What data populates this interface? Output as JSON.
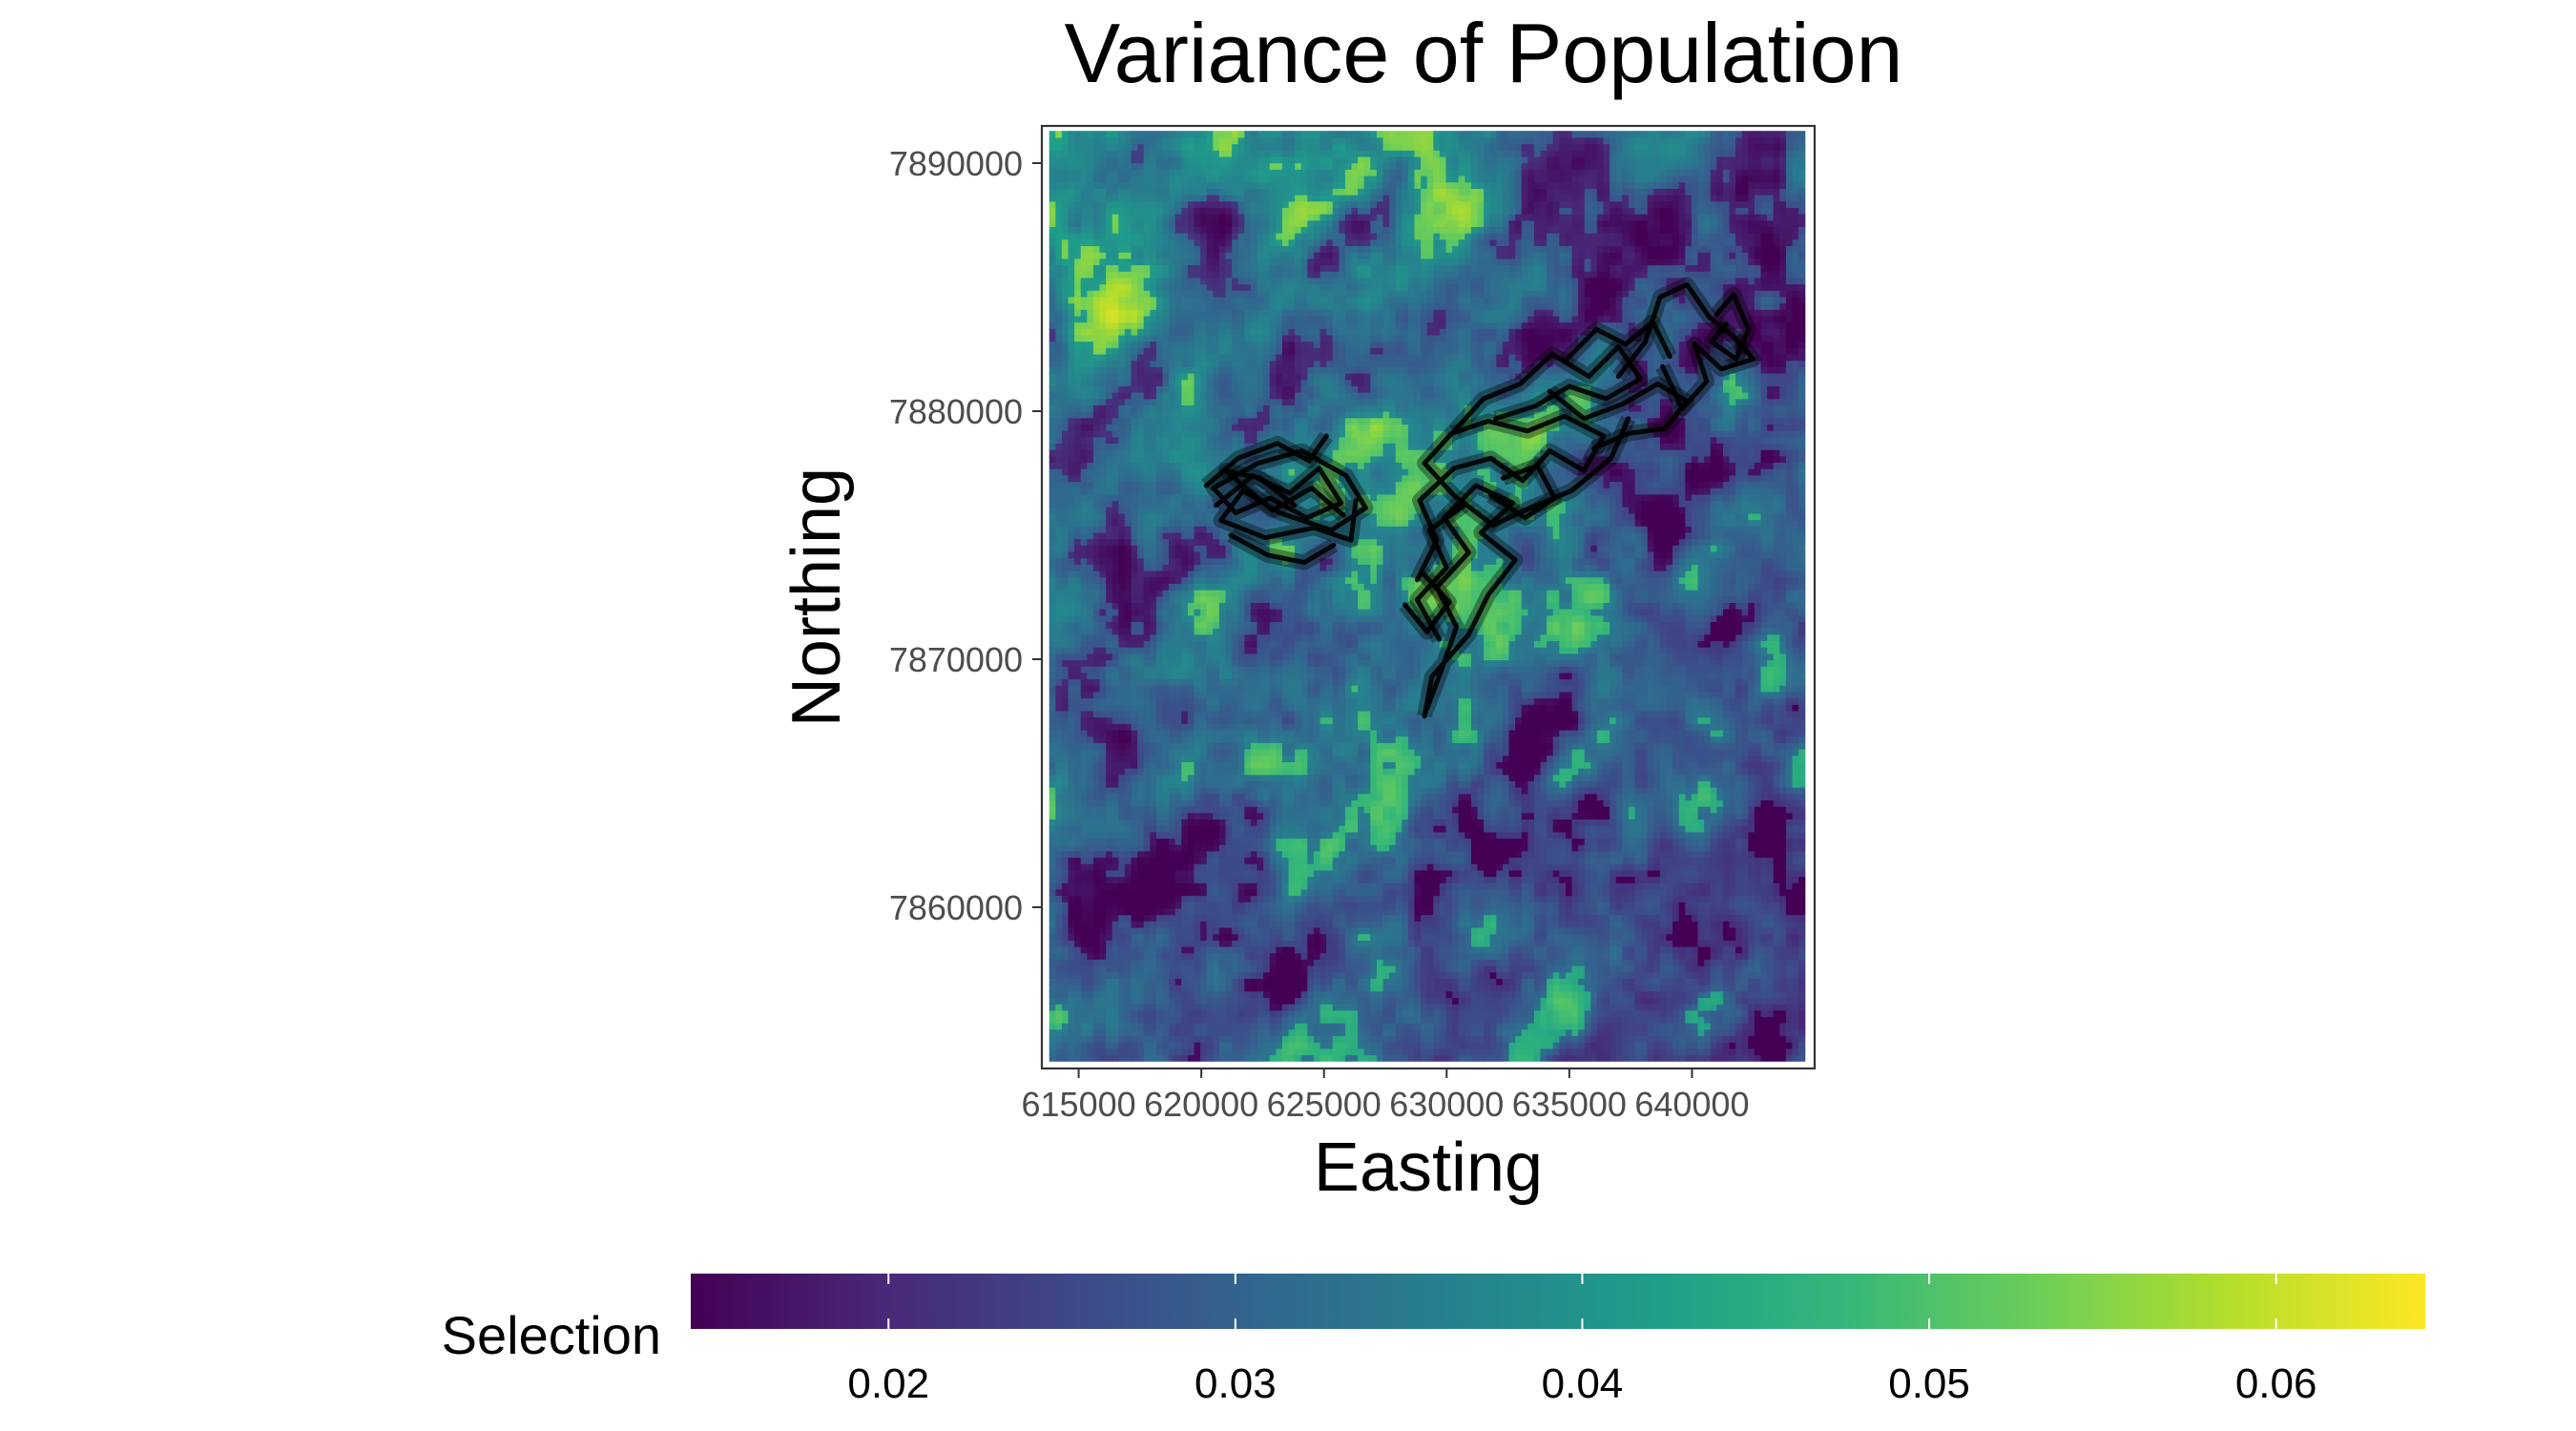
{
  "chart_data": {
    "type": "heatmap",
    "title": "Variance of Population",
    "xlabel": "Easting",
    "ylabel": "Northing",
    "x_ticks": [
      615000,
      620000,
      625000,
      630000,
      635000,
      640000
    ],
    "x_tick_labels": [
      "615000",
      "620000",
      "625000",
      "630000",
      "635000",
      "640000"
    ],
    "y_ticks": [
      7860000,
      7870000,
      7880000,
      7890000
    ],
    "y_tick_labels": [
      "7860000",
      "7870000",
      "7880000",
      "7890000"
    ],
    "xlim": [
      613500,
      645000
    ],
    "ylim": [
      7853500,
      7891500
    ],
    "raster_extent": {
      "x": [
        613800,
        644600
      ],
      "y": [
        7853800,
        7891300
      ]
    },
    "grid": false,
    "colormap": "viridis",
    "colors": {
      "viridis": [
        "#440154",
        "#482878",
        "#3e4989",
        "#31688e",
        "#26828e",
        "#1f9e89",
        "#35b779",
        "#6ece58",
        "#b5de2b",
        "#fde725"
      ]
    },
    "legend": {
      "title": "Selection",
      "position": "bottom",
      "range": [
        0.0143,
        0.0643
      ],
      "breaks": [
        0.02,
        0.03,
        0.04,
        0.05,
        0.06
      ],
      "break_labels": [
        "0.02",
        "0.03",
        "0.04",
        "0.05",
        "0.06"
      ]
    },
    "track_color": "#000000",
    "tracks": [
      [
        [
          620600,
          7876200
        ],
        [
          622100,
          7877400
        ],
        [
          623600,
          7876700
        ],
        [
          624800,
          7877700
        ],
        [
          625700,
          7876300
        ],
        [
          624300,
          7875700
        ],
        [
          622800,
          7876500
        ],
        [
          621400,
          7875900
        ],
        [
          620500,
          7876900
        ],
        [
          622300,
          7877900
        ],
        [
          624100,
          7878400
        ],
        [
          625900,
          7877400
        ],
        [
          626700,
          7876100
        ],
        [
          625300,
          7875200
        ],
        [
          623200,
          7875900
        ],
        [
          621700,
          7876800
        ],
        [
          620800,
          7875600
        ],
        [
          622600,
          7874900
        ],
        [
          624600,
          7875300
        ],
        [
          626100,
          7874800
        ],
        [
          626300,
          7876400
        ]
      ],
      [
        [
          620200,
          7877000
        ],
        [
          621500,
          7878100
        ],
        [
          623100,
          7878700
        ],
        [
          624400,
          7878000
        ],
        [
          625100,
          7879000
        ]
      ],
      [
        [
          621200,
          7875000
        ],
        [
          622700,
          7874200
        ],
        [
          624200,
          7873900
        ],
        [
          625400,
          7874600
        ]
      ],
      [
        [
          623800,
          7876200
        ],
        [
          622400,
          7877300
        ],
        [
          621000,
          7877600
        ],
        [
          622900,
          7876000
        ],
        [
          624500,
          7876900
        ],
        [
          625800,
          7875800
        ]
      ],
      [
        [
          629200,
          7868000
        ],
        [
          629800,
          7869600
        ],
        [
          630400,
          7871300
        ],
        [
          629600,
          7872900
        ],
        [
          630900,
          7874300
        ],
        [
          629900,
          7875700
        ],
        [
          631200,
          7877000
        ],
        [
          632700,
          7876300
        ],
        [
          631400,
          7875100
        ],
        [
          632800,
          7874000
        ],
        [
          631700,
          7872600
        ],
        [
          630900,
          7871000
        ],
        [
          629400,
          7869300
        ],
        [
          629100,
          7867700
        ]
      ],
      [
        [
          628800,
          7873200
        ],
        [
          629600,
          7874800
        ],
        [
          628900,
          7876400
        ],
        [
          630300,
          7877700
        ],
        [
          631800,
          7878100
        ],
        [
          633100,
          7877200
        ],
        [
          634200,
          7878400
        ],
        [
          635600,
          7877600
        ],
        [
          636400,
          7879000
        ],
        [
          634800,
          7879800
        ],
        [
          633300,
          7879200
        ],
        [
          631700,
          7879600
        ],
        [
          630200,
          7879100
        ],
        [
          629100,
          7877900
        ],
        [
          630300,
          7876600
        ],
        [
          631900,
          7875400
        ],
        [
          633400,
          7876100
        ],
        [
          635100,
          7876800
        ],
        [
          636700,
          7878100
        ],
        [
          637400,
          7879700
        ]
      ],
      [
        [
          630300,
          7879200
        ],
        [
          631500,
          7880500
        ],
        [
          633000,
          7881100
        ],
        [
          634300,
          7882300
        ],
        [
          635800,
          7881400
        ],
        [
          637000,
          7882600
        ],
        [
          637900,
          7881300
        ],
        [
          636500,
          7880500
        ],
        [
          635000,
          7881000
        ],
        [
          633600,
          7880200
        ],
        [
          632000,
          7879700
        ]
      ],
      [
        [
          634200,
          7880800
        ],
        [
          635600,
          7879700
        ],
        [
          637200,
          7880300
        ],
        [
          638600,
          7881100
        ],
        [
          639800,
          7880400
        ],
        [
          638900,
          7879300
        ],
        [
          637400,
          7879100
        ],
        [
          636000,
          7878500
        ]
      ],
      [
        [
          637000,
          7881400
        ],
        [
          638100,
          7882800
        ],
        [
          638700,
          7884600
        ],
        [
          639800,
          7885100
        ],
        [
          640700,
          7883800
        ],
        [
          641700,
          7883000
        ],
        [
          642500,
          7882100
        ],
        [
          641200,
          7881700
        ],
        [
          640100,
          7882700
        ],
        [
          640600,
          7881200
        ],
        [
          639600,
          7880100
        ],
        [
          638800,
          7881800
        ]
      ],
      [
        [
          641000,
          7883900
        ],
        [
          641700,
          7884700
        ],
        [
          642300,
          7883300
        ],
        [
          641800,
          7882100
        ],
        [
          640800,
          7882800
        ],
        [
          641400,
          7883500
        ]
      ],
      [
        [
          634800,
          7882000
        ],
        [
          636100,
          7883300
        ],
        [
          637300,
          7882700
        ],
        [
          638400,
          7883600
        ],
        [
          639100,
          7882200
        ]
      ],
      [
        [
          629700,
          7870800
        ],
        [
          628800,
          7872400
        ],
        [
          630000,
          7873700
        ],
        [
          629300,
          7875200
        ],
        [
          630700,
          7876200
        ]
      ],
      [
        [
          628300,
          7872200
        ],
        [
          629200,
          7871100
        ],
        [
          630100,
          7872300
        ],
        [
          629000,
          7873500
        ]
      ],
      [
        [
          631800,
          7876600
        ],
        [
          633200,
          7875700
        ],
        [
          634400,
          7876500
        ],
        [
          633700,
          7877800
        ],
        [
          632300,
          7877300
        ]
      ]
    ]
  }
}
